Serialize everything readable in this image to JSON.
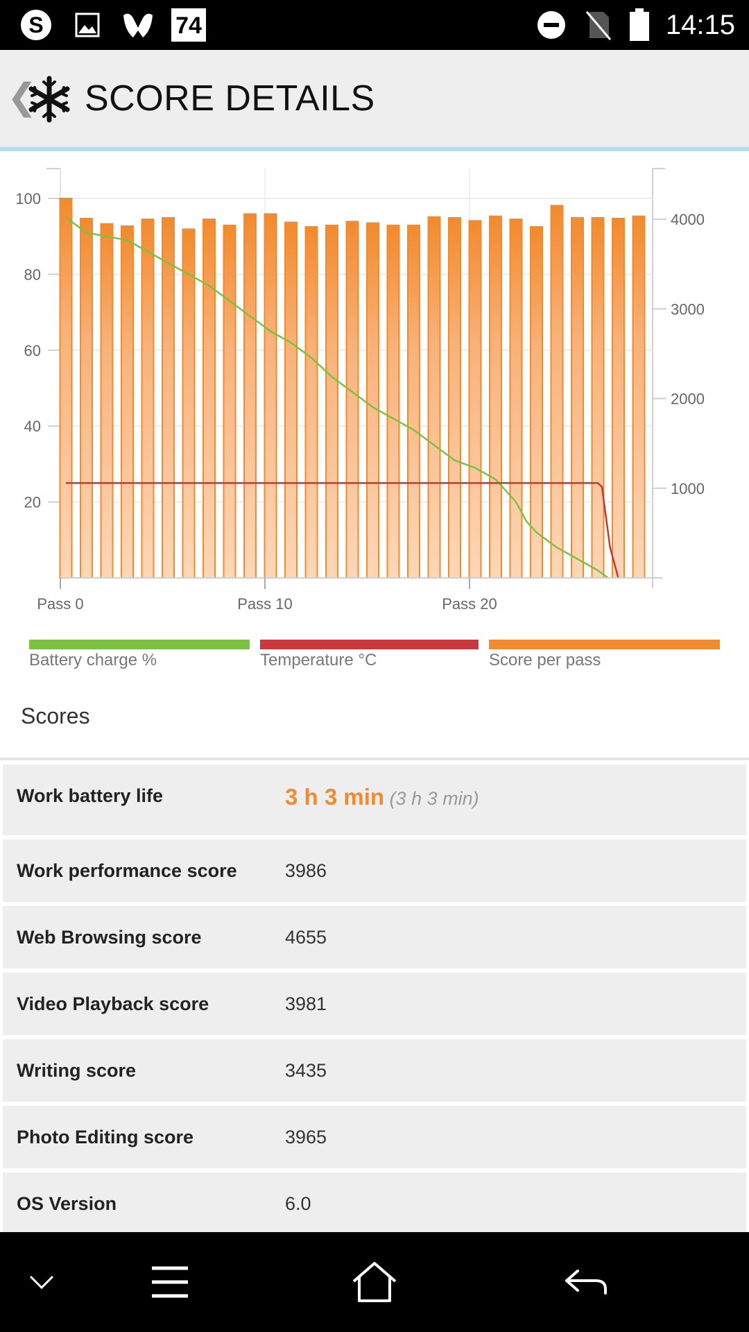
{
  "status_bar": {
    "time": "14:15",
    "badge_number": "74",
    "icons": [
      "skype-icon",
      "image-icon",
      "malwarebytes-icon",
      "badge-74-icon",
      "do-not-disturb-icon",
      "no-sim-icon",
      "battery-icon"
    ]
  },
  "app_bar": {
    "title": "SCORE DETAILS",
    "back_icon": "chevron-left-icon",
    "logo_icon": "snowflake-icon"
  },
  "chart_data": {
    "type": "bar",
    "categories": [
      "0",
      "1",
      "2",
      "3",
      "4",
      "5",
      "6",
      "7",
      "8",
      "9",
      "10",
      "11",
      "12",
      "13",
      "14",
      "15",
      "16",
      "17",
      "18",
      "19",
      "20",
      "21",
      "22",
      "23",
      "24",
      "25",
      "26",
      "27",
      "28"
    ],
    "x_tick_labels": [
      "Pass 0",
      "Pass 10",
      "Pass 20"
    ],
    "left_axis": {
      "ticks": [
        20,
        40,
        60,
        80,
        100
      ],
      "ylim": [
        0,
        100
      ]
    },
    "right_axis": {
      "ticks": [
        1000,
        2000,
        3000,
        4000
      ],
      "ylim": [
        0,
        4250
      ]
    },
    "grid": true,
    "series": [
      {
        "name": "Score per pass",
        "type": "bar",
        "axis": "left",
        "color": "#f28a2e",
        "values": [
          100,
          94.7,
          93.3,
          92.7,
          94.5,
          94.9,
          91.9,
          94.5,
          92.9,
          95.9,
          95.9,
          93.7,
          92.5,
          92.9,
          93.9,
          93.5,
          92.9,
          92.9,
          95.1,
          94.9,
          94.1,
          95.3,
          94.5,
          92.5,
          98.1,
          94.9,
          94.9,
          94.7,
          95.3
        ]
      },
      {
        "name": "Battery charge %",
        "type": "line",
        "axis": "left",
        "color": "#7cc142",
        "x": [
          0,
          1,
          2,
          3,
          4,
          5,
          6,
          7,
          8,
          9,
          10,
          11,
          12,
          13,
          14,
          15,
          16,
          17,
          18,
          19,
          20,
          21,
          22,
          22.5,
          23,
          24,
          25,
          26,
          26.5
        ],
        "values": [
          95,
          91,
          90,
          89,
          86,
          83,
          80,
          77,
          73,
          69,
          65,
          62,
          58,
          53,
          49,
          45,
          42,
          39,
          35,
          31,
          29,
          26,
          20,
          15,
          12,
          8,
          5,
          2,
          0
        ]
      },
      {
        "name": "Temperature °C",
        "type": "line",
        "axis": "left",
        "color": "#c0393b",
        "x": [
          0,
          26,
          26.2,
          26.6,
          27
        ],
        "values": [
          25,
          25,
          24,
          8,
          0
        ]
      }
    ],
    "legend": [
      "Battery charge %",
      "Temperature °C",
      "Score per pass"
    ],
    "legend_position": "bottom"
  },
  "legend": [
    {
      "label": "Battery charge %",
      "color": "#7cc142"
    },
    {
      "label": "Temperature °C",
      "color": "#c9393b"
    },
    {
      "label": "Score per pass",
      "color": "#f28a2e"
    }
  ],
  "scores": {
    "heading": "Scores",
    "rows": [
      {
        "label": "Work battery life",
        "value": "3 h 3 min",
        "sub": "(3 h 3 min)"
      },
      {
        "label": "Work performance score",
        "value": "3986"
      },
      {
        "label": "Web Browsing score",
        "value": "4655"
      },
      {
        "label": "Video Playback score",
        "value": "3981"
      },
      {
        "label": "Writing score",
        "value": "3435"
      },
      {
        "label": "Photo Editing score",
        "value": "3965"
      },
      {
        "label": "OS Version",
        "value": "6.0"
      }
    ]
  },
  "nav_bar": {
    "icons": [
      "chevron-down-icon",
      "menu-icon",
      "home-icon",
      "back-icon"
    ]
  }
}
